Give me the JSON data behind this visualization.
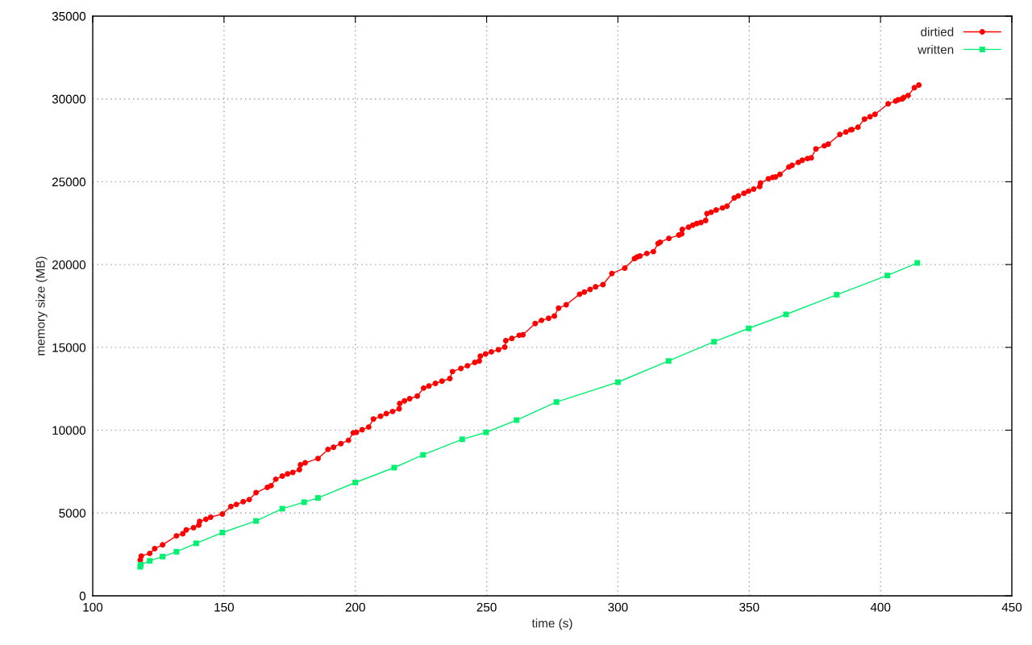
{
  "chart_data": {
    "type": "line",
    "xlabel": "time (s)",
    "ylabel": "memory size (MB)",
    "xlim": [
      100,
      450
    ],
    "xticks": [
      100,
      150,
      200,
      250,
      300,
      350,
      400,
      450
    ],
    "ylim": [
      0,
      35000
    ],
    "yticks": [
      0,
      5000,
      10000,
      15000,
      20000,
      25000,
      30000,
      35000
    ],
    "grid": true,
    "legend": "top right",
    "line_style": "solid",
    "series": [
      {
        "name": "dirtied",
        "color": "#ff0000",
        "marker": "circle",
        "x": [
          118.1,
          118.5,
          121.7,
          123.6,
          126.6,
          131.9,
          134.3,
          135.6,
          138.4,
          140.4,
          140.7,
          143.1,
          144.9,
          149.4,
          152.6,
          154.7,
          157.3,
          159.6,
          162.2,
          166.5,
          167.9,
          169.7,
          172.2,
          174.2,
          176.2,
          178.7,
          179.1,
          180.9,
          185.8,
          189.6,
          191.7,
          194.5,
          197.4,
          199.2,
          200.4,
          202.6,
          205.1,
          206.9,
          209.6,
          211.8,
          214.2,
          216.7,
          216.9,
          218.7,
          220.7,
          223.6,
          226.0,
          228.0,
          230.5,
          233.0,
          236.0,
          237.0,
          240.2,
          242.7,
          245.5,
          247.2,
          247.6,
          249.6,
          251.8,
          254.5,
          256.9,
          257.3,
          259.6,
          262.4,
          263.8,
          268.5,
          270.9,
          273.6,
          275.8,
          277.4,
          280.3,
          285.4,
          287.2,
          289.4,
          291.5,
          294.3,
          297.7,
          302.6,
          306.3,
          307.3,
          308.4,
          311.0,
          313.5,
          315.3,
          316.1,
          319.4,
          323.2,
          324.3,
          324.5,
          326.9,
          328.5,
          330.0,
          331.6,
          333.4,
          333.9,
          335.5,
          337.4,
          339.8,
          341.5,
          344.3,
          345.8,
          348.0,
          349.7,
          351.7,
          354.0,
          354.3,
          357.3,
          358.9,
          360.0,
          361.7,
          365.1,
          366.3,
          368.7,
          370.2,
          372.2,
          373.6,
          375.4,
          378.6,
          380.1,
          384.5,
          386.8,
          388.6,
          389.1,
          391.4,
          393.9,
          396.0,
          397.9,
          402.9,
          405.7,
          406.7,
          408.2,
          408.8,
          410.5,
          412.9,
          414.6
        ],
        "values": [
          2170,
          2400,
          2560,
          2850,
          3075,
          3620,
          3750,
          3980,
          4110,
          4270,
          4490,
          4620,
          4750,
          4940,
          5390,
          5520,
          5680,
          5810,
          6230,
          6550,
          6650,
          7040,
          7230,
          7360,
          7450,
          7620,
          7910,
          8030,
          8290,
          8840,
          8970,
          9190,
          9390,
          9840,
          9870,
          10030,
          10190,
          10670,
          10840,
          11000,
          11130,
          11290,
          11610,
          11770,
          11900,
          12060,
          12540,
          12670,
          12830,
          12960,
          13120,
          13540,
          13730,
          13890,
          14090,
          14180,
          14470,
          14600,
          14730,
          14860,
          15020,
          15410,
          15540,
          15730,
          15760,
          16440,
          16630,
          16760,
          16890,
          17370,
          17570,
          18210,
          18340,
          18500,
          18660,
          18790,
          19460,
          19790,
          20360,
          20460,
          20520,
          20670,
          20780,
          21270,
          21350,
          21580,
          21780,
          21860,
          22120,
          22260,
          22380,
          22480,
          22540,
          22660,
          23080,
          23160,
          23290,
          23420,
          23520,
          24020,
          24140,
          24300,
          24430,
          24560,
          24710,
          24920,
          25180,
          25260,
          25290,
          25450,
          25890,
          25990,
          26170,
          26300,
          26400,
          26440,
          26980,
          27170,
          27270,
          27860,
          28000,
          28130,
          28150,
          28290,
          28780,
          28930,
          29070,
          29710,
          29870,
          29950,
          30000,
          30080,
          30210,
          30680,
          30840
        ]
      },
      {
        "name": "written",
        "color": "#00f070",
        "marker": "square",
        "x": [
          118.1,
          118.3,
          121.7,
          126.6,
          131.9,
          139.4,
          149.4,
          162.2,
          172.2,
          180.5,
          185.8,
          200.0,
          214.8,
          225.8,
          240.7,
          249.8,
          261.4,
          276.6,
          300.0,
          319.3,
          336.6,
          349.8,
          364.0,
          383.3,
          402.6,
          414.0
        ],
        "values": [
          1750,
          1880,
          2110,
          2370,
          2660,
          3170,
          3820,
          4520,
          5260,
          5650,
          5910,
          6840,
          7740,
          8510,
          9450,
          9870,
          10610,
          11700,
          12900,
          14180,
          15340,
          16150,
          16990,
          18180,
          19340,
          20100
        ]
      }
    ]
  }
}
